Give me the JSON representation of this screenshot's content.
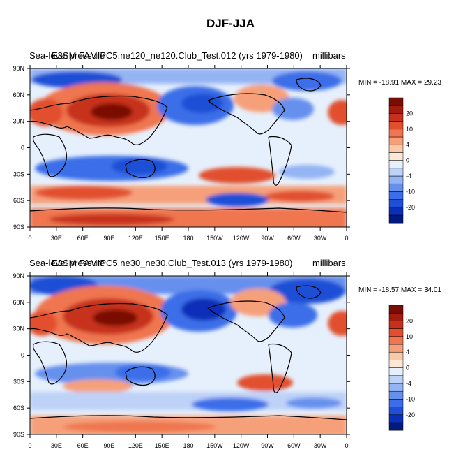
{
  "title": "DJF-JJA",
  "colors": {
    "bins": [
      "#001a80",
      "#0a2fb8",
      "#1f4fd6",
      "#3b6ee8",
      "#6690ee",
      "#94b4f4",
      "#bed2f8",
      "#e6f0fc",
      "#fde8d8",
      "#fbc8a8",
      "#f6a07a",
      "#ef7650",
      "#e24f2e",
      "#c7301a",
      "#a31b0f",
      "#7a0c06"
    ],
    "land": "#000000"
  },
  "axes": {
    "lat_ticks": [
      "90N",
      "60N",
      "30N",
      "0",
      "30S",
      "60S",
      "90S"
    ],
    "lon_ticks": [
      "0",
      "30E",
      "60E",
      "90E",
      "120E",
      "150E",
      "180",
      "150W",
      "120W",
      "90W",
      "60W",
      "30W",
      "0"
    ]
  },
  "colorbar": {
    "labels": [
      "20",
      "10",
      "4",
      "0",
      "-4",
      "-10",
      "-20"
    ]
  },
  "panels": [
    {
      "title_overlap_a": "Sea-level pressure",
      "title_overlap_b": "lev E3SM",
      "title_left": "Sea-level pressure",
      "title_center": "E3SM FAMIPC5.ne120_ne120.Club_Test.012 (yrs 1979-1980)",
      "units": "millibars",
      "min_label": "MIN =",
      "min_value": "-18.91",
      "max_label": "MAX =",
      "max_value": "29.23"
    },
    {
      "title_overlap_a": "Sea-level pressure",
      "title_overlap_b": "lev E3SM",
      "title_left": "Sea-level pressure",
      "title_center": "E3SM FAMIPC5.ne30_ne30.Club_Test.013 (yrs 1979-1980)",
      "units": "millibars",
      "min_label": "MIN =",
      "min_value": "-18.57",
      "max_label": "MAX =",
      "max_value": "34.01"
    }
  ]
}
